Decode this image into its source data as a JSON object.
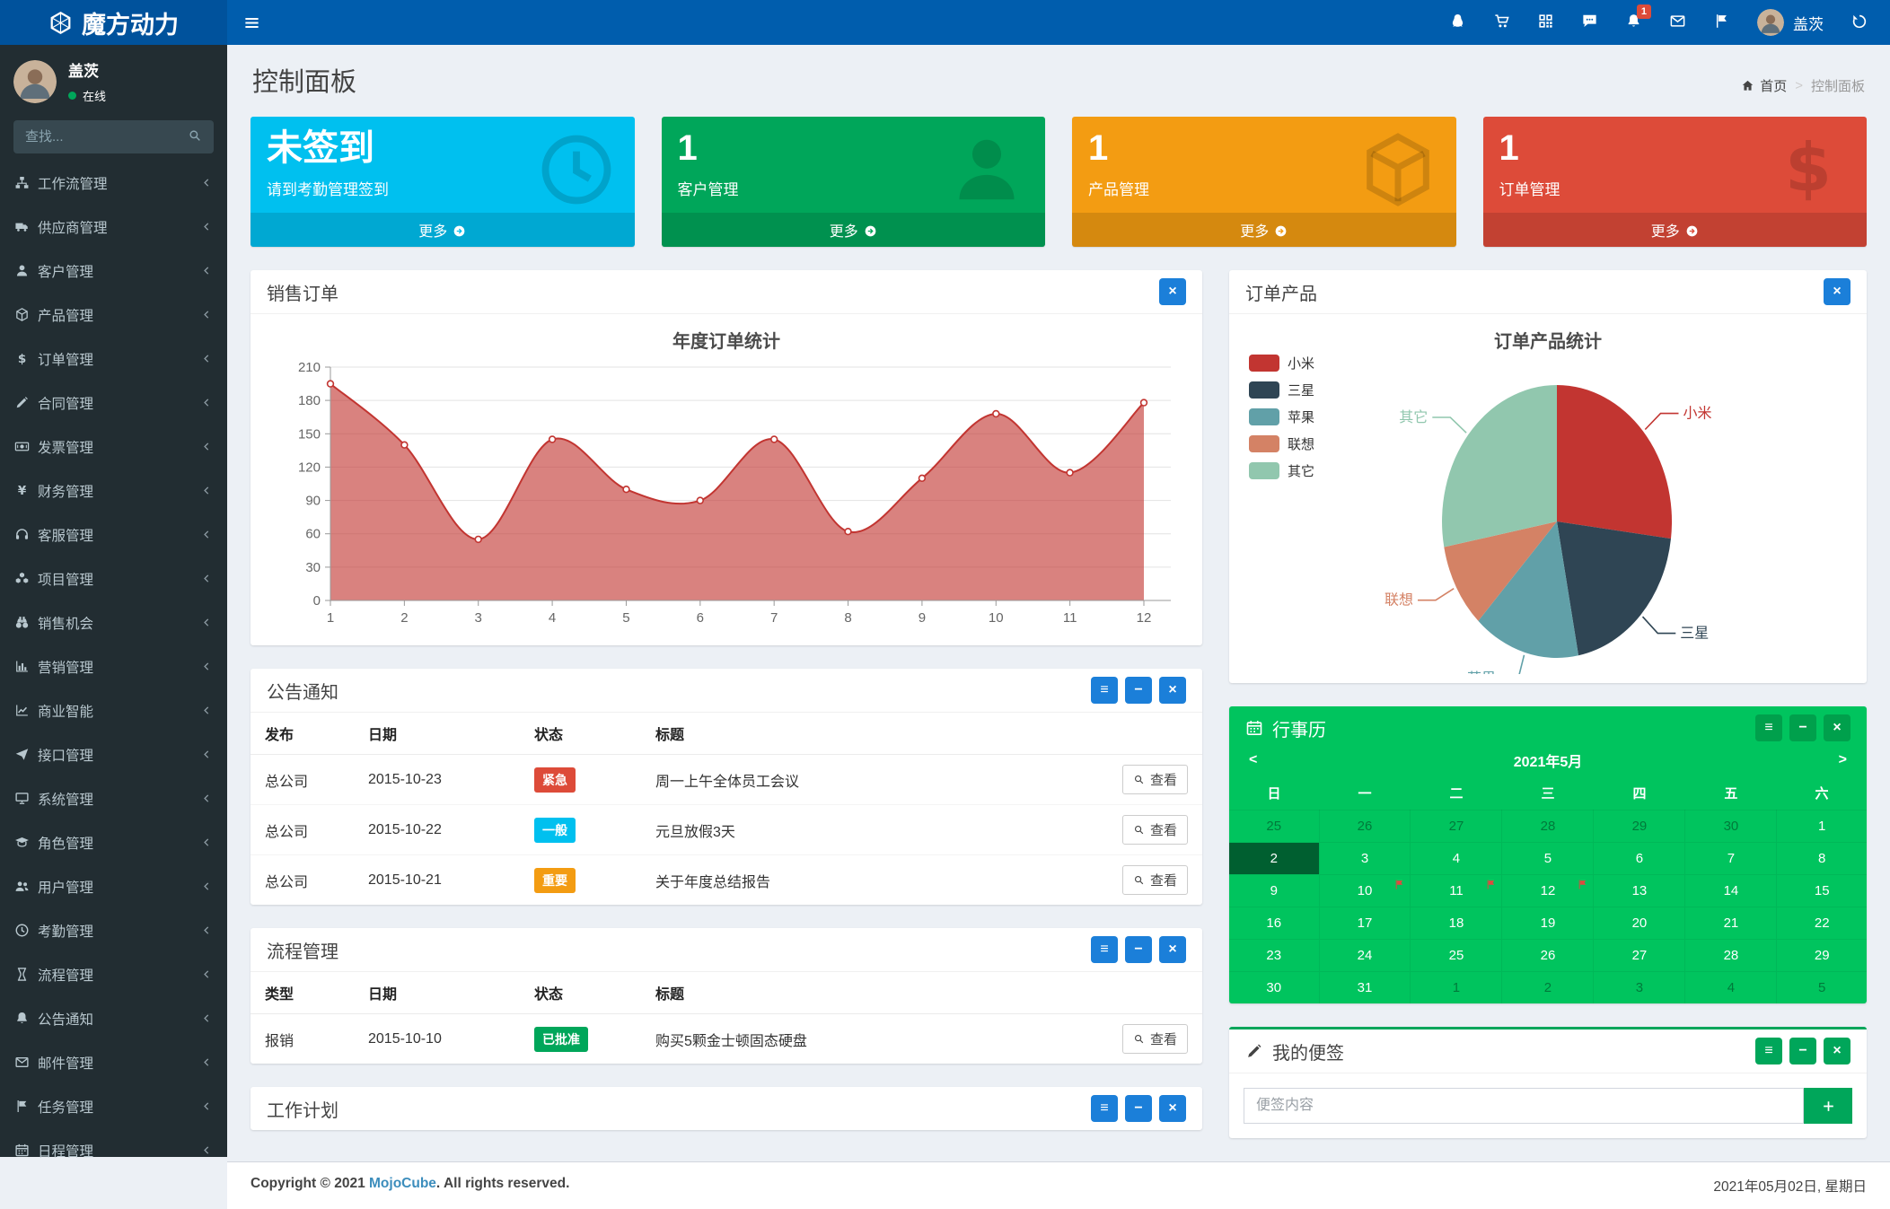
{
  "navbar": {
    "brand": "魔方动力",
    "icons": [
      {
        "name": "qq-icon"
      },
      {
        "name": "cart-icon"
      },
      {
        "name": "qrcode-icon"
      },
      {
        "name": "comment-icon"
      },
      {
        "name": "bell-icon",
        "badge": "1"
      },
      {
        "name": "envelope-icon"
      },
      {
        "name": "flag-icon"
      }
    ],
    "user_name": "盖茨"
  },
  "sidebar": {
    "user": {
      "name": "盖茨",
      "status": "在线"
    },
    "search_placeholder": "查找...",
    "items": [
      {
        "label": "工作流管理",
        "icon": "sitemap-icon"
      },
      {
        "label": "供应商管理",
        "icon": "truck-icon"
      },
      {
        "label": "客户管理",
        "icon": "user-icon"
      },
      {
        "label": "产品管理",
        "icon": "cube-icon"
      },
      {
        "label": "订单管理",
        "icon": "dollar-icon"
      },
      {
        "label": "合同管理",
        "icon": "pencil-icon"
      },
      {
        "label": "发票管理",
        "icon": "money-icon"
      },
      {
        "label": "财务管理",
        "icon": "yen-icon"
      },
      {
        "label": "客服管理",
        "icon": "headphones-icon"
      },
      {
        "label": "项目管理",
        "icon": "cubes-icon"
      },
      {
        "label": "销售机会",
        "icon": "binoculars-icon"
      },
      {
        "label": "营销管理",
        "icon": "bar-chart-icon"
      },
      {
        "label": "商业智能",
        "icon": "line-chart-icon"
      },
      {
        "label": "接口管理",
        "icon": "paper-plane-icon"
      },
      {
        "label": "系统管理",
        "icon": "desktop-icon"
      },
      {
        "label": "角色管理",
        "icon": "graduation-cap-icon"
      },
      {
        "label": "用户管理",
        "icon": "users-icon"
      },
      {
        "label": "考勤管理",
        "icon": "clock-icon"
      },
      {
        "label": "流程管理",
        "icon": "hourglass-icon"
      },
      {
        "label": "公告通知",
        "icon": "bell-icon"
      },
      {
        "label": "邮件管理",
        "icon": "envelope-icon"
      },
      {
        "label": "任务管理",
        "icon": "flag-icon"
      },
      {
        "label": "日程管理",
        "icon": "calendar-icon"
      }
    ]
  },
  "page": {
    "title": "控制面板",
    "breadcrumb_home": "首页",
    "breadcrumb_current": "控制面板"
  },
  "info_boxes": [
    {
      "title": "未签到",
      "subtitle": "请到考勤管理签到",
      "more_label": "更多",
      "color": "#00c0ef",
      "icon": "clock-icon"
    },
    {
      "title": "1",
      "subtitle": "客户管理",
      "more_label": "更多",
      "color": "#00a65a",
      "icon": "user-icon"
    },
    {
      "title": "1",
      "subtitle": "产品管理",
      "more_label": "更多",
      "color": "#f39c12",
      "icon": "cube-icon"
    },
    {
      "title": "1",
      "subtitle": "订单管理",
      "more_label": "更多",
      "color": "#dd4b39",
      "icon": "dollar-icon"
    }
  ],
  "panels": {
    "sales_orders": {
      "title": "销售订单"
    },
    "order_products": {
      "title": "订单产品"
    },
    "announcements": {
      "title": "公告通知",
      "headers": [
        "发布",
        "日期",
        "状态",
        "标题"
      ],
      "action_label": "查看",
      "rows": [
        {
          "publisher": "总公司",
          "date": "2015-10-23",
          "status": "紧急",
          "status_color": "#dd4b39",
          "title": "周一上午全体员工会议"
        },
        {
          "publisher": "总公司",
          "date": "2015-10-22",
          "status": "一般",
          "status_color": "#00c0ef",
          "title": "元旦放假3天"
        },
        {
          "publisher": "总公司",
          "date": "2015-10-21",
          "status": "重要",
          "status_color": "#f39c12",
          "title": "关于年度总结报告"
        }
      ]
    },
    "workflows": {
      "title": "流程管理",
      "headers": [
        "类型",
        "日期",
        "状态",
        "标题"
      ],
      "action_label": "查看",
      "rows": [
        {
          "publisher": "报销",
          "date": "2015-10-10",
          "status": "已批准",
          "status_color": "#00a65a",
          "title": "购买5颗金士顿固态硬盘"
        }
      ]
    },
    "work_plan": {
      "title": "工作计划"
    },
    "calendar": {
      "title": "行事历",
      "month": "2021年5月",
      "prev": "<",
      "next": ">",
      "day_headers": [
        "日",
        "一",
        "二",
        "三",
        "四",
        "五",
        "六"
      ],
      "weeks": [
        [
          {
            "d": "25",
            "muted": true
          },
          {
            "d": "26",
            "muted": true
          },
          {
            "d": "27",
            "muted": true
          },
          {
            "d": "28",
            "muted": true
          },
          {
            "d": "29",
            "muted": true
          },
          {
            "d": "30",
            "muted": true
          },
          {
            "d": "1"
          }
        ],
        [
          {
            "d": "2",
            "selected": true
          },
          {
            "d": "3"
          },
          {
            "d": "4"
          },
          {
            "d": "5"
          },
          {
            "d": "6"
          },
          {
            "d": "7"
          },
          {
            "d": "8"
          }
        ],
        [
          {
            "d": "9"
          },
          {
            "d": "10",
            "flag": true
          },
          {
            "d": "11",
            "flag": true
          },
          {
            "d": "12",
            "flag": true
          },
          {
            "d": "13"
          },
          {
            "d": "14"
          },
          {
            "d": "15"
          }
        ],
        [
          {
            "d": "16"
          },
          {
            "d": "17"
          },
          {
            "d": "18"
          },
          {
            "d": "19"
          },
          {
            "d": "20"
          },
          {
            "d": "21"
          },
          {
            "d": "22"
          }
        ],
        [
          {
            "d": "23"
          },
          {
            "d": "24"
          },
          {
            "d": "25"
          },
          {
            "d": "26"
          },
          {
            "d": "27"
          },
          {
            "d": "28"
          },
          {
            "d": "29"
          }
        ],
        [
          {
            "d": "30"
          },
          {
            "d": "31"
          },
          {
            "d": "1",
            "muted": true
          },
          {
            "d": "2",
            "muted": true
          },
          {
            "d": "3",
            "muted": true
          },
          {
            "d": "4",
            "muted": true
          },
          {
            "d": "5",
            "muted": true
          }
        ]
      ]
    },
    "notes": {
      "title": "我的便签",
      "placeholder": "便签内容"
    }
  },
  "footer": {
    "copyright_prefix": "Copyright © 2021",
    "brand": "MojoCube",
    "copyright_suffix": ". All rights reserved.",
    "date": "2021年05月02日, 星期日"
  },
  "chart_data": [
    {
      "type": "area",
      "title": "年度订单统计",
      "x": [
        1,
        2,
        3,
        4,
        5,
        6,
        7,
        8,
        9,
        10,
        11,
        12
      ],
      "values": [
        195,
        140,
        55,
        145,
        100,
        90,
        145,
        62,
        110,
        168,
        115,
        178
      ],
      "xlabel": "",
      "ylabel": "",
      "ylim": [
        0,
        210
      ],
      "ytick_step": 30,
      "grid": true,
      "line_color": "#c23531",
      "fill_color": "#c23531",
      "fill_opacity": 0.62
    },
    {
      "type": "pie",
      "title": "订单产品统计",
      "labels": [
        "小米",
        "三星",
        "苹果",
        "联想",
        "其它"
      ],
      "values": [
        27,
        20,
        15,
        10,
        28
      ],
      "unit": "percent",
      "colors": [
        "#c23531",
        "#2f4554",
        "#61a0a8",
        "#d48265",
        "#91c7ae"
      ],
      "legend_position": "top-left"
    }
  ]
}
